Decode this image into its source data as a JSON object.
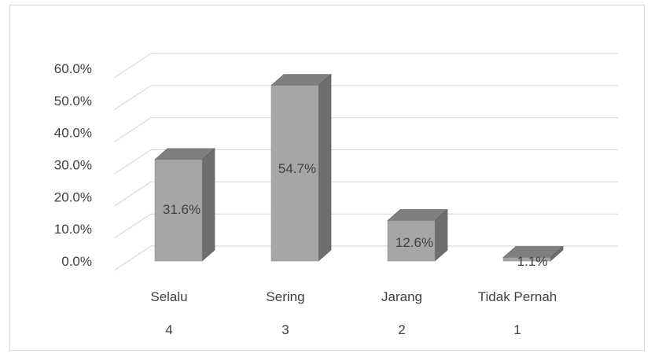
{
  "chart_data": {
    "type": "bar",
    "style": "3d-column",
    "categories": [
      "Selalu",
      "Sering",
      "Jarang",
      "Tidak Pernah"
    ],
    "category_codes": [
      "4",
      "3",
      "2",
      "1"
    ],
    "values": [
      31.6,
      54.7,
      12.6,
      1.1
    ],
    "data_labels": [
      "31.6%",
      "54.7%",
      "12.6%",
      "1.1%"
    ],
    "ylim": [
      0,
      60
    ],
    "y_ticks": [
      "0.0%",
      "10.0%",
      "20.0%",
      "30.0%",
      "40.0%",
      "50.0%",
      "60.0%"
    ],
    "grid": true,
    "legend": "none",
    "title": "",
    "xlabel": "",
    "ylabel": "",
    "colors": {
      "bar_front": "#a6a6a6",
      "bar_side": "#6e6e6e",
      "bar_top": "#7f7f7f",
      "grid": "#d9d9d9",
      "text": "#404040"
    }
  }
}
